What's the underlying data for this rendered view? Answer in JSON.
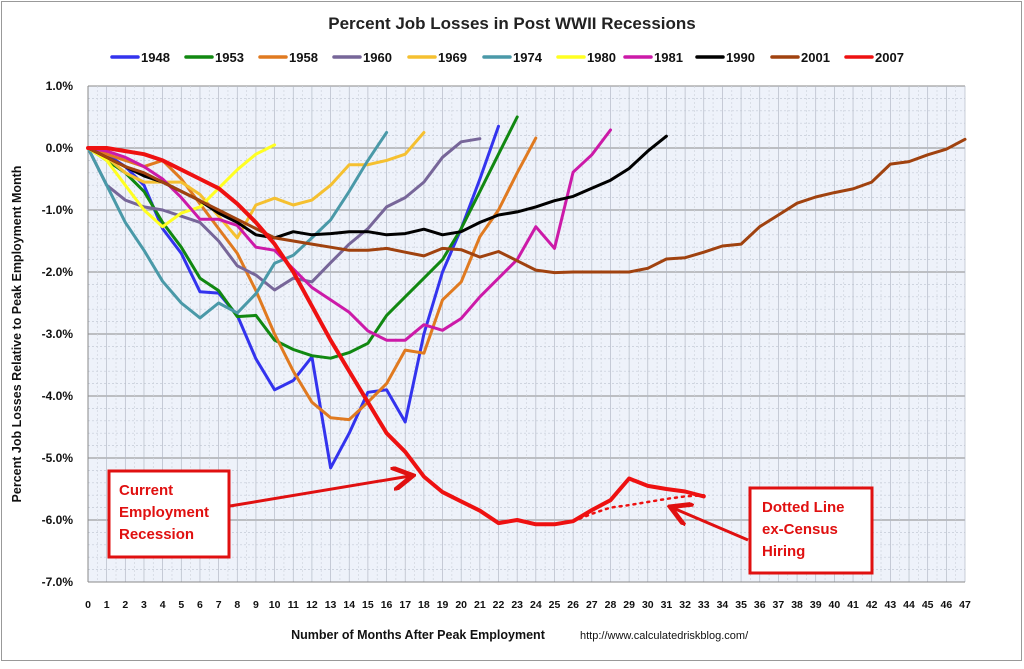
{
  "chart_data": {
    "type": "line",
    "title": "Percent Job Losses in Post WWII Recessions",
    "xlabel": "Number of Months After Peak Employment",
    "ylabel": "Percent Job Losses Relative to Peak Employment Month",
    "source": "http://www.calculatedriskblog.com/",
    "xlim": [
      0,
      47
    ],
    "ylim": [
      -7.0,
      1.0
    ],
    "grid": true,
    "legend_position": "top",
    "y_ticks": [
      "1.0%",
      "0.0%",
      "-1.0%",
      "-2.0%",
      "-3.0%",
      "-4.0%",
      "-5.0%",
      "-6.0%",
      "-7.0%"
    ],
    "y_tick_values": [
      1,
      0,
      -1,
      -2,
      -3,
      -4,
      -5,
      -6,
      -7
    ],
    "x_ticks": [
      0,
      1,
      2,
      3,
      4,
      5,
      6,
      7,
      8,
      9,
      10,
      11,
      12,
      13,
      14,
      15,
      16,
      17,
      18,
      19,
      20,
      21,
      22,
      23,
      24,
      25,
      26,
      27,
      28,
      29,
      30,
      31,
      32,
      33,
      34,
      35,
      36,
      37,
      38,
      39,
      40,
      41,
      42,
      43,
      44,
      45,
      46,
      47
    ],
    "series": [
      {
        "name": "1948",
        "color": "#3333ee",
        "values": [
          0,
          -0.1,
          -0.3,
          -0.6,
          -1.3,
          -1.7,
          -2.32,
          -2.34,
          -2.7,
          -3.4,
          -3.9,
          -3.75,
          -3.37,
          -5.16,
          -4.6,
          -3.94,
          -3.9,
          -4.42,
          -3.0,
          -2.0,
          -1.3,
          -0.5,
          0.35
        ]
      },
      {
        "name": "1953",
        "color": "#118811",
        "values": [
          0,
          -0.2,
          -0.4,
          -0.7,
          -1.2,
          -1.6,
          -2.1,
          -2.3,
          -2.72,
          -2.7,
          -3.1,
          -3.25,
          -3.35,
          -3.39,
          -3.3,
          -3.15,
          -2.7,
          -2.4,
          -2.1,
          -1.8,
          -1.3,
          -0.7,
          -0.1,
          0.5
        ]
      },
      {
        "name": "1958",
        "color": "#e07a20",
        "values": [
          0,
          -0.1,
          -0.2,
          -0.3,
          -0.2,
          -0.5,
          -0.9,
          -1.3,
          -1.7,
          -2.3,
          -3.0,
          -3.6,
          -4.1,
          -4.35,
          -4.38,
          -4.1,
          -3.8,
          -3.26,
          -3.31,
          -2.45,
          -2.16,
          -1.43,
          -1.0,
          -0.4,
          0.16
        ]
      },
      {
        "name": "1960",
        "color": "#776699",
        "values": [
          0,
          -0.6,
          -0.84,
          -0.95,
          -1.0,
          -1.1,
          -1.2,
          -1.5,
          -1.9,
          -2.05,
          -2.29,
          -2.1,
          -2.16,
          -1.85,
          -1.55,
          -1.3,
          -0.95,
          -0.8,
          -0.55,
          -0.15,
          0.1,
          0.15
        ]
      },
      {
        "name": "1969",
        "color": "#f5c030",
        "values": [
          0,
          -0.15,
          -0.4,
          -0.55,
          -0.55,
          -0.55,
          -0.75,
          -1.1,
          -1.45,
          -0.92,
          -0.81,
          -0.92,
          -0.84,
          -0.6,
          -0.27,
          -0.27,
          -0.2,
          -0.1,
          0.25
        ]
      },
      {
        "name": "1974",
        "color": "#4a99a8",
        "values": [
          0,
          -0.6,
          -1.2,
          -1.65,
          -2.15,
          -2.5,
          -2.74,
          -2.5,
          -2.66,
          -2.35,
          -1.86,
          -1.73,
          -1.45,
          -1.16,
          -0.7,
          -0.2,
          0.25
        ]
      },
      {
        "name": "1980",
        "color": "#ffff22",
        "values": [
          0,
          -0.2,
          -0.6,
          -1.0,
          -1.27,
          -1.05,
          -0.95,
          -0.65,
          -0.35,
          -0.1,
          0.05
        ]
      },
      {
        "name": "1981",
        "color": "#cc1aa8",
        "values": [
          0,
          -0.05,
          -0.15,
          -0.3,
          -0.5,
          -0.8,
          -1.15,
          -1.15,
          -1.25,
          -1.6,
          -1.65,
          -1.95,
          -2.25,
          -2.45,
          -2.65,
          -2.95,
          -3.1,
          -3.1,
          -2.85,
          -2.94,
          -2.75,
          -2.4,
          -2.1,
          -1.8,
          -1.27,
          -1.62,
          -0.39,
          -0.11,
          0.29
        ]
      },
      {
        "name": "1990",
        "color": "#000000",
        "values": [
          0,
          -0.15,
          -0.3,
          -0.45,
          -0.55,
          -0.7,
          -0.85,
          -1.05,
          -1.2,
          -1.4,
          -1.45,
          -1.35,
          -1.4,
          -1.38,
          -1.35,
          -1.35,
          -1.4,
          -1.38,
          -1.31,
          -1.4,
          -1.35,
          -1.2,
          -1.08,
          -1.03,
          -0.95,
          -0.85,
          -0.78,
          -0.65,
          -0.52,
          -0.33,
          -0.05,
          0.19
        ]
      },
      {
        "name": "2001",
        "color": "#a0420f",
        "values": [
          0,
          -0.15,
          -0.3,
          -0.4,
          -0.55,
          -0.7,
          -0.85,
          -1.0,
          -1.15,
          -1.3,
          -1.45,
          -1.5,
          -1.55,
          -1.6,
          -1.65,
          -1.65,
          -1.62,
          -1.68,
          -1.74,
          -1.62,
          -1.64,
          -1.76,
          -1.67,
          -1.82,
          -1.97,
          -2.01,
          -2.0,
          -2.0,
          -2.0,
          -2.0,
          -1.94,
          -1.79,
          -1.77,
          -1.68,
          -1.58,
          -1.55,
          -1.27,
          -1.08,
          -0.89,
          -0.79,
          -0.72,
          -0.66,
          -0.55,
          -0.26,
          -0.22,
          -0.11,
          -0.02,
          0.14
        ]
      },
      {
        "name": "2007",
        "color": "#ee1111",
        "values": [
          0,
          0,
          -0.05,
          -0.1,
          -0.2,
          -0.35,
          -0.5,
          -0.65,
          -0.9,
          -1.2,
          -1.55,
          -2.0,
          -2.55,
          -3.1,
          -3.6,
          -4.1,
          -4.6,
          -4.9,
          -5.3,
          -5.55,
          -5.7,
          -5.85,
          -6.05,
          -6.0,
          -6.07,
          -6.07,
          -6.02,
          -5.84,
          -5.68,
          -5.33,
          -5.45,
          -5.5,
          -5.54,
          -5.62
        ]
      }
    ],
    "dotted_series": {
      "name": "2007 ex-Census",
      "color": "#ee1111",
      "x": [
        26,
        27,
        28,
        29,
        30,
        31,
        32,
        33
      ],
      "values": [
        -6.02,
        -5.9,
        -5.8,
        -5.76,
        -5.71,
        -5.66,
        -5.62,
        -5.6
      ]
    },
    "annotations": [
      {
        "lines": [
          "Current",
          "Employment",
          "Recession"
        ],
        "points_to_month": 17.5
      },
      {
        "lines": [
          "Dotted Line",
          "ex-Census",
          "Hiring"
        ],
        "points_to_month": 31
      }
    ]
  }
}
